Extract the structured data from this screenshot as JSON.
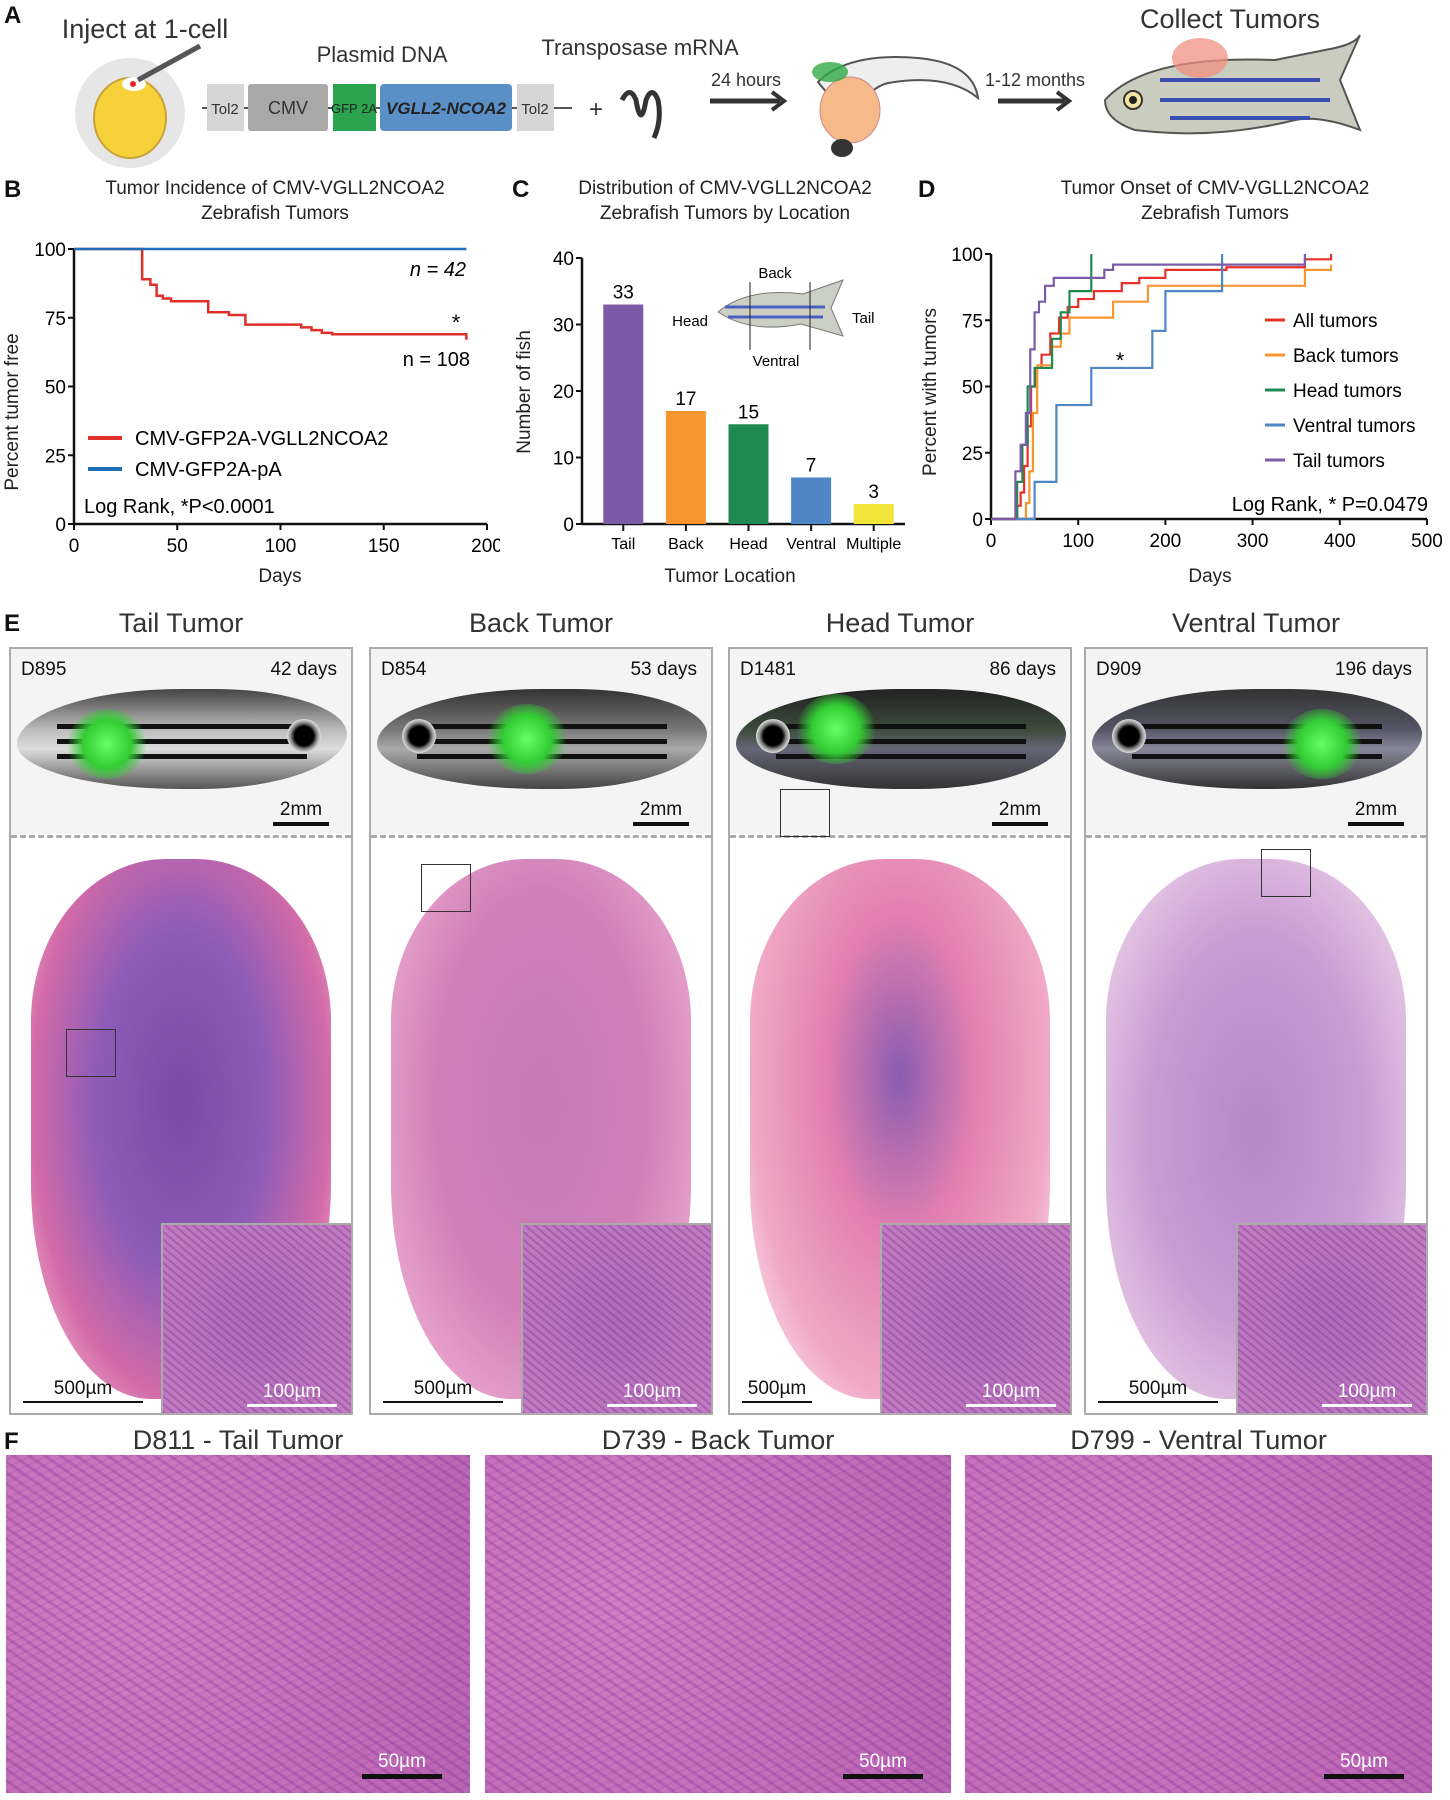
{
  "panel_labels": {
    "a": "A",
    "b": "B",
    "c": "C",
    "d": "D",
    "e": "E",
    "f": "F"
  },
  "panel_a": {
    "inject_label": "Inject at 1-cell",
    "plasmid_label": "Plasmid DNA",
    "construct": [
      "Tol2",
      "CMV",
      "GFP 2A",
      "VGLL2-NCOA2",
      "Tol2"
    ],
    "plus": "+",
    "transposase_label": "Transposase mRNA",
    "arrow1_label": "24 hours",
    "arrow2_label": "1-12 months",
    "collect_label": "Collect Tumors"
  },
  "chart_data": [
    {
      "type": "line",
      "id": "B",
      "title": "Tumor Incidence of CMV-VGLL2NCOA2 Zebrafish Tumors",
      "xlabel": "Days",
      "ylabel": "Percent tumor free",
      "xlim": [
        0,
        200
      ],
      "ylim": [
        0,
        100
      ],
      "xticks": [
        0,
        50,
        100,
        150,
        200
      ],
      "yticks": [
        0,
        25,
        50,
        75,
        100
      ],
      "series": [
        {
          "name": "CMV-GFP2A-VGLL2NCOA2",
          "color": "#e0302a",
          "points": [
            [
              0,
              100
            ],
            [
              33,
              100
            ],
            [
              33,
              89
            ],
            [
              37,
              89
            ],
            [
              37,
              87
            ],
            [
              40,
              87
            ],
            [
              40,
              83
            ],
            [
              43,
              83
            ],
            [
              43,
              82
            ],
            [
              47,
              82
            ],
            [
              47,
              81
            ],
            [
              65,
              81
            ],
            [
              65,
              77
            ],
            [
              75,
              77
            ],
            [
              75,
              76
            ],
            [
              83,
              76
            ],
            [
              83,
              72.5
            ],
            [
              110,
              72.5
            ],
            [
              110,
              71.5
            ],
            [
              115,
              71.5
            ],
            [
              115,
              70.5
            ],
            [
              120,
              70.5
            ],
            [
              120,
              69.5
            ],
            [
              125,
              69.5
            ],
            [
              125,
              69
            ],
            [
              190,
              69
            ],
            [
              190,
              67
            ]
          ]
        },
        {
          "name": "CMV-GFP2A-pA",
          "color": "#1f6fb8",
          "points": [
            [
              0,
              100
            ],
            [
              190,
              100
            ]
          ]
        }
      ],
      "annotations": {
        "n_top": "n = 42",
        "n_bottom": "n = 108",
        "star": "*",
        "stat": "Log Rank, *P<0.0001"
      },
      "legend": "bottom-left"
    },
    {
      "type": "bar",
      "id": "C",
      "title": "Distribution of CMV-VGLL2NCOA2 Zebrafish Tumors by Location",
      "xlabel": "Tumor Location",
      "ylabel": "Number of fish",
      "categories": [
        "Tail",
        "Back",
        "Head",
        "Ventral",
        "Multiple"
      ],
      "values": [
        33,
        17,
        15,
        7,
        3
      ],
      "colors": [
        "#7b5aa6",
        "#f7962f",
        "#1f8a4f",
        "#4f86c6",
        "#f3e43a"
      ],
      "ylim": [
        0,
        40
      ],
      "yticks": [
        0,
        10,
        20,
        30,
        40
      ],
      "inset_labels": {
        "back": "Back",
        "head": "Head",
        "tail": "Tail",
        "ventral": "Ventral"
      }
    },
    {
      "type": "line",
      "id": "D",
      "title": "Tumor Onset of CMV-VGLL2NCOA2 Zebrafish Tumors",
      "xlabel": "Days",
      "ylabel": "Percent with tumors",
      "xlim": [
        0,
        500
      ],
      "ylim": [
        0,
        100
      ],
      "xticks": [
        0,
        100,
        200,
        300,
        400,
        500
      ],
      "yticks": [
        0,
        25,
        50,
        75,
        100
      ],
      "series": [
        {
          "name": "All tumors",
          "color": "#e8302a",
          "points": [
            [
              0,
              0
            ],
            [
              30,
              0
            ],
            [
              30,
              5
            ],
            [
              34,
              5
            ],
            [
              34,
              10
            ],
            [
              38,
              10
            ],
            [
              38,
              20
            ],
            [
              42,
              20
            ],
            [
              42,
              35
            ],
            [
              46,
              35
            ],
            [
              46,
              50
            ],
            [
              52,
              50
            ],
            [
              52,
              57
            ],
            [
              58,
              57
            ],
            [
              58,
              62
            ],
            [
              68,
              62
            ],
            [
              68,
              70
            ],
            [
              78,
              70
            ],
            [
              78,
              76
            ],
            [
              88,
              76
            ],
            [
              88,
              80
            ],
            [
              100,
              80
            ],
            [
              100,
              83
            ],
            [
              118,
              83
            ],
            [
              118,
              86
            ],
            [
              150,
              86
            ],
            [
              150,
              89
            ],
            [
              170,
              89
            ],
            [
              170,
              91
            ],
            [
              200,
              91
            ],
            [
              200,
              94
            ],
            [
              270,
              94
            ],
            [
              270,
              95
            ],
            [
              360,
              95
            ],
            [
              360,
              98
            ],
            [
              390,
              98
            ],
            [
              390,
              100
            ]
          ]
        },
        {
          "name": "Back tumors",
          "color": "#f7962f",
          "points": [
            [
              0,
              0
            ],
            [
              40,
              0
            ],
            [
              40,
              6
            ],
            [
              44,
              6
            ],
            [
              44,
              18
            ],
            [
              48,
              18
            ],
            [
              48,
              40
            ],
            [
              53,
              40
            ],
            [
              53,
              58
            ],
            [
              70,
              58
            ],
            [
              70,
              65
            ],
            [
              80,
              65
            ],
            [
              80,
              70
            ],
            [
              90,
              70
            ],
            [
              90,
              76
            ],
            [
              140,
              76
            ],
            [
              140,
              82
            ],
            [
              180,
              82
            ],
            [
              180,
              88
            ],
            [
              360,
              88
            ],
            [
              360,
              94
            ],
            [
              390,
              94
            ],
            [
              390,
              96
            ]
          ]
        },
        {
          "name": "Head tumors",
          "color": "#1f8a4f",
          "points": [
            [
              0,
              0
            ],
            [
              30,
              0
            ],
            [
              30,
              14
            ],
            [
              36,
              14
            ],
            [
              36,
              28
            ],
            [
              42,
              28
            ],
            [
              42,
              50
            ],
            [
              50,
              50
            ],
            [
              50,
              57
            ],
            [
              70,
              57
            ],
            [
              70,
              68
            ],
            [
              80,
              68
            ],
            [
              80,
              78
            ],
            [
              90,
              78
            ],
            [
              90,
              86
            ],
            [
              115,
              86
            ],
            [
              115,
              100
            ]
          ]
        },
        {
          "name": "Ventral tumors",
          "color": "#4f86c6",
          "points": [
            [
              0,
              0
            ],
            [
              50,
              0
            ],
            [
              50,
              14
            ],
            [
              75,
              14
            ],
            [
              75,
              43
            ],
            [
              115,
              43
            ],
            [
              115,
              57
            ],
            [
              185,
              57
            ],
            [
              185,
              71
            ],
            [
              200,
              71
            ],
            [
              200,
              86
            ],
            [
              265,
              86
            ],
            [
              265,
              100
            ]
          ]
        },
        {
          "name": "Tail tumors",
          "color": "#7b5aa6",
          "points": [
            [
              0,
              0
            ],
            [
              28,
              0
            ],
            [
              28,
              18
            ],
            [
              34,
              18
            ],
            [
              34,
              28
            ],
            [
              40,
              28
            ],
            [
              40,
              40
            ],
            [
              45,
              40
            ],
            [
              45,
              64
            ],
            [
              50,
              64
            ],
            [
              50,
              78
            ],
            [
              55,
              78
            ],
            [
              55,
              82
            ],
            [
              62,
              82
            ],
            [
              62,
              88
            ],
            [
              72,
              88
            ],
            [
              72,
              91
            ],
            [
              130,
              91
            ],
            [
              130,
              94
            ],
            [
              140,
              94
            ],
            [
              140,
              96
            ],
            [
              360,
              96
            ],
            [
              360,
              100
            ]
          ]
        }
      ],
      "annotations": {
        "star": "*",
        "stat": "Log Rank, * P=0.0479"
      },
      "legend": "right"
    }
  ],
  "panel_e": [
    {
      "title": "Tail Tumor",
      "id": "D895",
      "days": "42 days",
      "photo_scale": "2mm",
      "section_scale": "500µm",
      "inset_scale": "100µm"
    },
    {
      "title": "Back Tumor",
      "id": "D854",
      "days": "53 days",
      "photo_scale": "2mm",
      "section_scale": "500µm",
      "inset_scale": "100µm"
    },
    {
      "title": "Head Tumor",
      "id": "D1481",
      "days": "86 days",
      "photo_scale": "2mm",
      "section_scale": "500µm",
      "inset_scale": "100µm"
    },
    {
      "title": "Ventral Tumor",
      "id": "D909",
      "days": "196 days",
      "photo_scale": "2mm",
      "section_scale": "500µm",
      "inset_scale": "100µm"
    }
  ],
  "panel_f": [
    {
      "title": "D811 - Tail Tumor",
      "scale": "50µm"
    },
    {
      "title": "D739 - Back Tumor",
      "scale": "50µm"
    },
    {
      "title": "D799 - Ventral Tumor",
      "scale": "50µm"
    }
  ]
}
